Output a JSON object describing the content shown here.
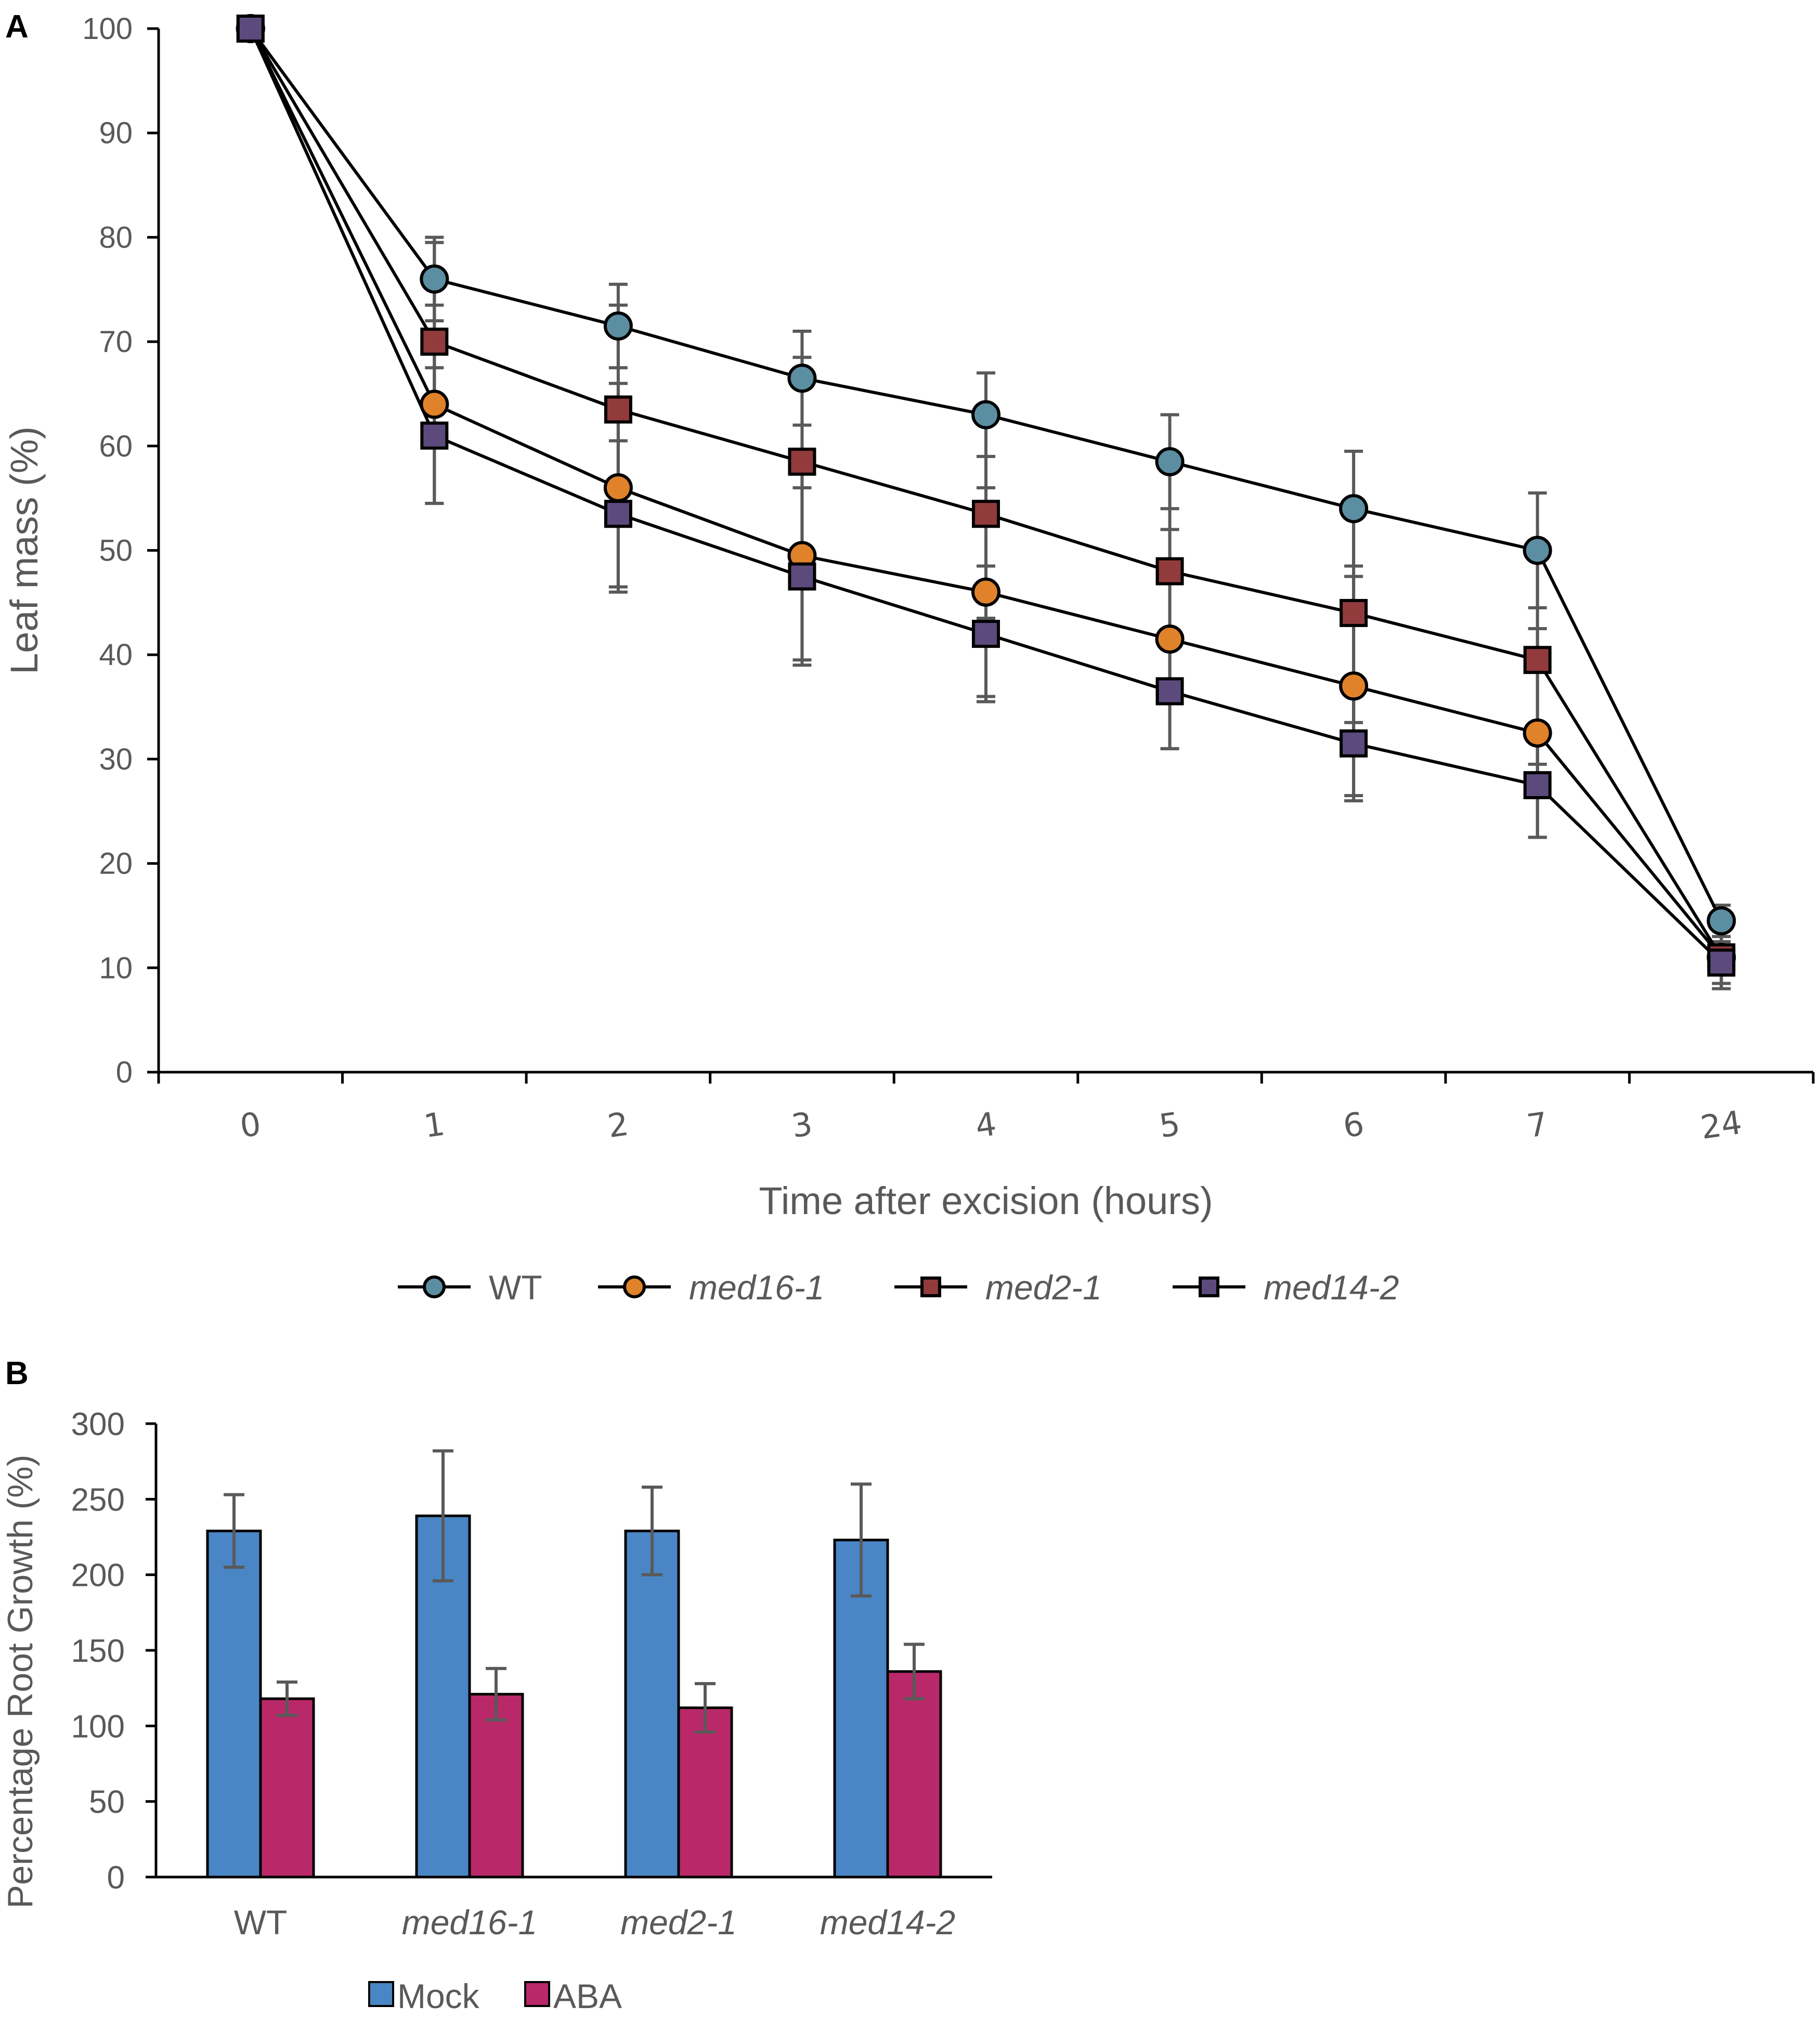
{
  "chart_data": [
    {
      "panel": "A",
      "type": "line",
      "xlabel": "Time after excision (hours)",
      "ylabel": "Leaf mass (%)",
      "ylim": [
        0,
        100
      ],
      "yticks": [
        "0",
        "10",
        "20",
        "30",
        "40",
        "50",
        "60",
        "70",
        "80",
        "90",
        "100"
      ],
      "categories": [
        "0",
        "1",
        "2",
        "3",
        "4",
        "5",
        "6",
        "7",
        "24"
      ],
      "grid": false,
      "legend_position": "bottom",
      "series": [
        {
          "name": "WT",
          "marker": "circle",
          "color": "#5b8ea1",
          "values": [
            100,
            76,
            71.5,
            66.5,
            63,
            58.5,
            54,
            50,
            14.5
          ],
          "errors": [
            0,
            4,
            4,
            4.5,
            4,
            4.5,
            5.5,
            5.5,
            1.5
          ]
        },
        {
          "name": "med16-1",
          "marker": "circle",
          "color": "#e0822a",
          "values": [
            100,
            64,
            56,
            49.5,
            46,
            41.5,
            37,
            32.5,
            11
          ],
          "errors": [
            0,
            9.5,
            10,
            10,
            10,
            10.5,
            10.5,
            10,
            3
          ]
        },
        {
          "name": "med2-1",
          "marker": "square",
          "color": "#913b3c",
          "values": [
            100,
            70,
            63.5,
            58.5,
            53.5,
            48,
            44,
            39.5,
            11
          ],
          "errors": [
            0,
            9.5,
            10,
            10,
            10,
            10.5,
            10.5,
            10,
            3
          ]
        },
        {
          "name": "med14-2",
          "marker": "square",
          "color": "#5c4a7c",
          "values": [
            100,
            61,
            53.5,
            47.5,
            42,
            36.5,
            31.5,
            27.5,
            10.5
          ],
          "errors": [
            0,
            6.5,
            7,
            8.5,
            6.5,
            5.5,
            5.5,
            5,
            2
          ]
        }
      ]
    },
    {
      "panel": "B",
      "type": "bar",
      "ylabel": "Percentage Root Growth (%)",
      "xlabel": "",
      "ylim": [
        0,
        300
      ],
      "yticks": [
        "0",
        "50",
        "100",
        "150",
        "200",
        "250",
        "300"
      ],
      "categories": [
        "WT",
        "med16-1",
        "med2-1",
        "med14-2"
      ],
      "grid": false,
      "legend_position": "bottom-left",
      "series": [
        {
          "name": "Mock",
          "color": "#4a86c5",
          "values": [
            229,
            239,
            229,
            223
          ],
          "errors": [
            24,
            43,
            29,
            37
          ]
        },
        {
          "name": "ABA",
          "color": "#b9296a",
          "values": [
            118,
            121,
            112,
            136
          ],
          "errors": [
            11,
            17,
            16,
            18
          ]
        }
      ]
    }
  ],
  "panel_labels": {
    "a": "A",
    "b": "B"
  }
}
